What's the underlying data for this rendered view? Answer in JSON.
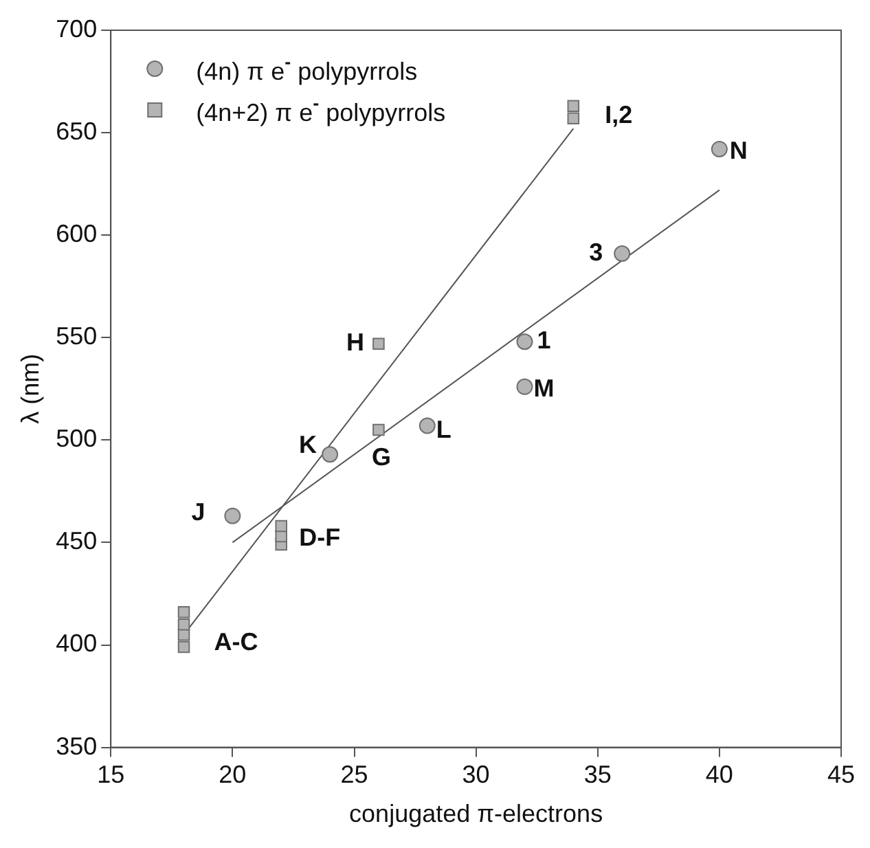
{
  "chart_data": {
    "type": "scatter",
    "xlabel": "conjugated π-electrons",
    "ylabel": "λ (nm)",
    "xlim": [
      15,
      45
    ],
    "xticks": [
      15,
      20,
      25,
      30,
      35,
      40,
      45
    ],
    "ylim": [
      350,
      700
    ],
    "yticks": [
      350,
      400,
      450,
      500,
      550,
      600,
      650,
      700
    ],
    "grid": false,
    "legend": "top left",
    "series": [
      {
        "name": "(4n) π e$^{-}$ polypyrrols",
        "color": "#b4b4b4",
        "marker": "circle",
        "x": [
          20,
          24,
          28,
          32,
          32,
          36,
          40
        ],
        "values": [
          463,
          493,
          507,
          548,
          526,
          591,
          642
        ]
      },
      {
        "name": "(4n+2) π e$^{-}$ polypyrrols",
        "color": "#b4b4b4",
        "marker": "square",
        "x": [
          18,
          18,
          18,
          18,
          22,
          22,
          22,
          26,
          26,
          34,
          34
        ],
        "values": [
          399,
          405,
          410,
          416,
          449,
          453,
          458,
          505,
          547,
          657,
          663
        ]
      },
      {
        "type": "line",
        "color": "#555555",
        "marker": "none",
        "x": [
          20,
          40
        ],
        "values": [
          450,
          622
        ]
      },
      {
        "type": "line",
        "color": "#555555",
        "marker": "none",
        "x": [
          18,
          34
        ],
        "values": [
          405,
          652
        ]
      }
    ],
    "annotations": [
      {
        "text": "J",
        "x": 20,
        "y": 463
      },
      {
        "text": "K",
        "x": 24,
        "y": 493
      },
      {
        "text": "G",
        "x": 26,
        "y": 505
      },
      {
        "text": "L",
        "x": 28,
        "y": 507
      },
      {
        "text": "M",
        "x": 32,
        "y": 526
      },
      {
        "text": "1",
        "x": 32,
        "y": 548
      },
      {
        "text": "3",
        "x": 36,
        "y": 591
      },
      {
        "text": "H",
        "x": 26,
        "y": 547
      },
      {
        "text": "N",
        "x": 40,
        "y": 642
      },
      {
        "text": "I,2",
        "x": 34,
        "y": 660
      },
      {
        "text": "D-F",
        "x": 22,
        "y": 453
      },
      {
        "text": "A-C",
        "x": 18,
        "y": 407
      }
    ]
  }
}
